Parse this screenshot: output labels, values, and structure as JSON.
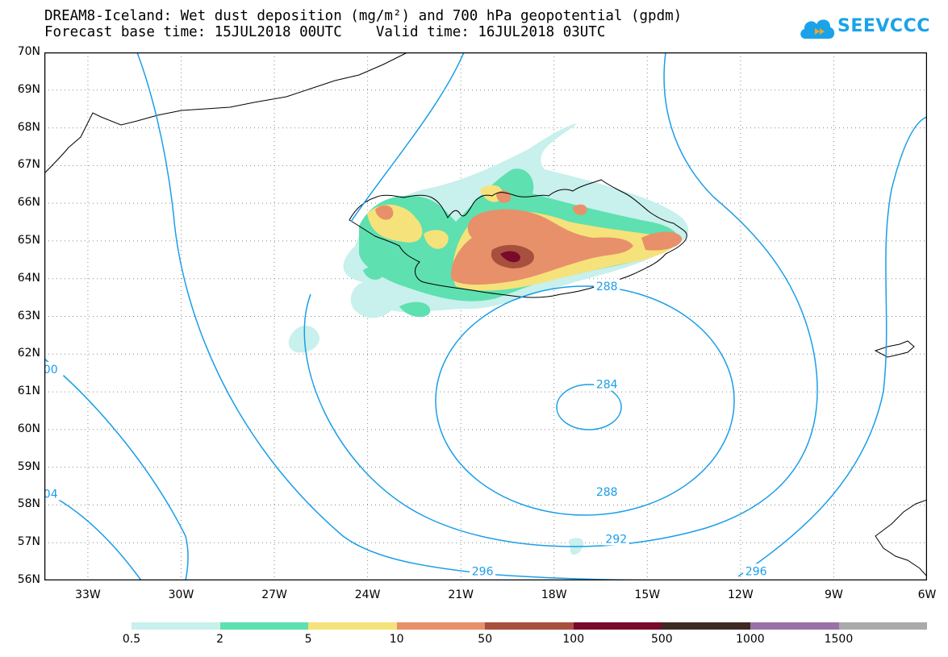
{
  "title": {
    "line1": "DREAM8-Iceland: Wet dust deposition (mg/m²) and 700 hPa geopotential (gpdm)",
    "line2": "Forecast base time: 15JUL2018 00UTC    Valid time: 16JUL2018 03UTC"
  },
  "logo": {
    "text": "SEEVCCC",
    "icon": "cloud-icon",
    "color": "#1aa3e8"
  },
  "map": {
    "lat_labels": [
      "70N",
      "69N",
      "68N",
      "67N",
      "66N",
      "65N",
      "64N",
      "63N",
      "62N",
      "61N",
      "60N",
      "59N",
      "58N",
      "57N",
      "56N"
    ],
    "lon_labels": [
      "33W",
      "30W",
      "27W",
      "24W",
      "21W",
      "18W",
      "15W",
      "12W",
      "9W",
      "6W"
    ],
    "lat_range": [
      56,
      70
    ],
    "lon_range": [
      -34.4,
      -6
    ],
    "contour_labels": [
      {
        "text": "288",
        "lon": -16.3,
        "lat": 63.8
      },
      {
        "text": "284",
        "lon": -16.3,
        "lat": 61.2
      },
      {
        "text": "288",
        "lon": -16.3,
        "lat": 58.35
      },
      {
        "text": "292",
        "lon": -16,
        "lat": 57.1
      },
      {
        "text": "296",
        "lon": -20.3,
        "lat": 56.25
      },
      {
        "text": "296",
        "lon": -11.5,
        "lat": 56.25
      },
      {
        "text": "00",
        "lon": -34.2,
        "lat": 61.6
      },
      {
        "text": "04",
        "lon": -34.2,
        "lat": 58.3
      }
    ],
    "contour_color": "#1a9ee8",
    "coast_color": "#000000",
    "grid_color": "#888888"
  },
  "legend": {
    "labels": [
      "0.5",
      "2",
      "5",
      "10",
      "50",
      "100",
      "500",
      "1000",
      "1500"
    ],
    "colors": [
      "#c8f0ec",
      "#5ee0b0",
      "#f6e27a",
      "#e8906a",
      "#a8503e",
      "#7a0a2a",
      "#3e2a22",
      "#9a70a8",
      "#aaaaaa"
    ]
  }
}
